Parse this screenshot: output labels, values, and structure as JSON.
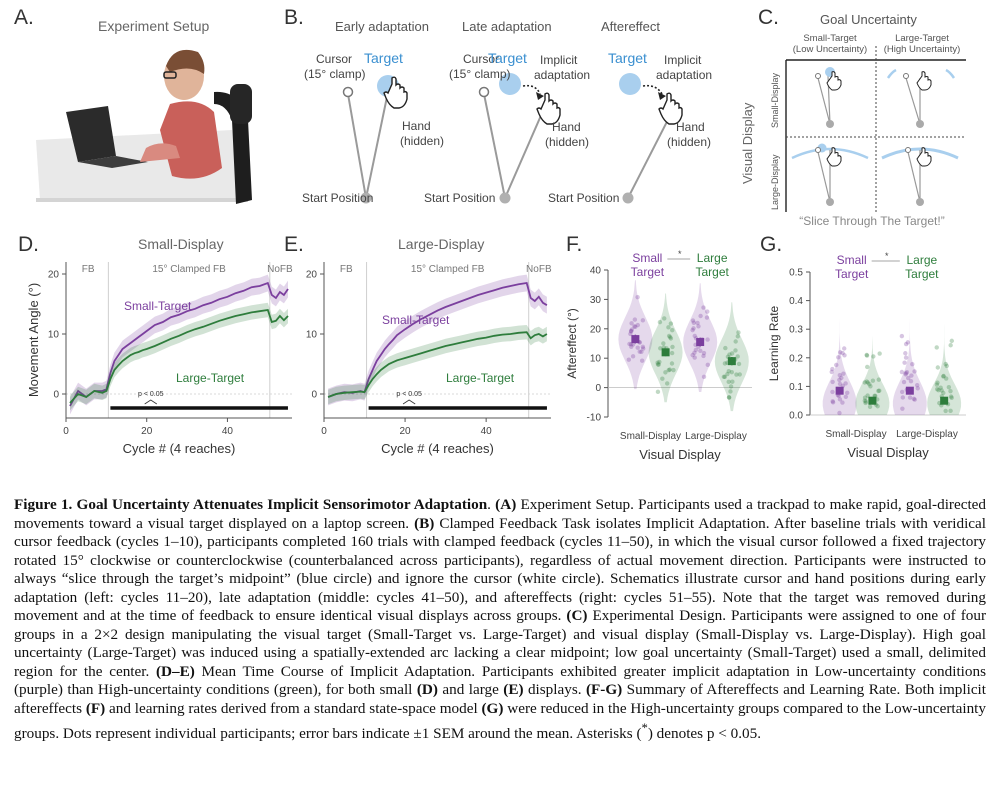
{
  "panels": {
    "a": {
      "letter": "A.",
      "title": "Experiment Setup"
    },
    "b": {
      "letter": "B.",
      "phases": [
        "Early adaptation",
        "Late adaptation",
        "Aftereffect"
      ],
      "cursor": "Cursor",
      "clamp": "(15° clamp)",
      "target": "Target",
      "hand": "Hand",
      "hidden": "(hidden)",
      "implicit": "Implicit",
      "adaptation": "adaptation",
      "start": "Start Position"
    },
    "c": {
      "letter": "C.",
      "title": "Goal Uncertainty",
      "col1a": "Small-Target",
      "col1b": "(Low Uncertainty)",
      "col2a": "Large-Target",
      "col2b": "(High Uncertainty)",
      "ylabel": "Visual Display",
      "row1": "Small-Display",
      "row2": "Large-Display",
      "instruction": "“Slice Through The Target!”"
    },
    "d": {
      "letter": "D.",
      "title": "Small-Display"
    },
    "e": {
      "letter": "E.",
      "title": "Large-Display"
    },
    "f": {
      "letter": "F."
    },
    "g": {
      "letter": "G."
    }
  },
  "timecourse": {
    "phase_labels": {
      "fb": "FB",
      "clamped": "15° Clamped FB",
      "nofb": "NoFB"
    },
    "ylabel": "Movement Angle (°)",
    "xlabel": "Cycle # (4 reaches)",
    "pval": "p < 0.05",
    "small_target": "Small-Target",
    "large_target": "Large-Target"
  },
  "violin": {
    "small_target": [
      "Small",
      "Target"
    ],
    "large_target": [
      "Large",
      "Target"
    ],
    "asterisk": "*",
    "xlabel": "Visual Display",
    "f_ylabel": "Aftereffect (°)",
    "g_ylabel": "Learning Rate"
  },
  "colors": {
    "purple": "#7b3f9e",
    "green": "#2e7d3c",
    "target_blue": "#a9cfee",
    "label_blue": "#3a8fd0"
  },
  "chart_data": [
    {
      "type": "line",
      "panel": "D",
      "title": "Small-Display",
      "xlabel": "Cycle # (4 reaches)",
      "ylabel": "Movement Angle (°)",
      "xlim": [
        0,
        56
      ],
      "ylim": [
        -4,
        22
      ],
      "xticks": [
        0,
        20,
        40
      ],
      "yticks": [
        0,
        10,
        20
      ],
      "phase_boundaries": [
        10.5,
        50.5
      ],
      "x": [
        1,
        3,
        5,
        7,
        9,
        10,
        11,
        12,
        13,
        14,
        15,
        16,
        17,
        18,
        19,
        20,
        22,
        24,
        26,
        28,
        30,
        32,
        34,
        36,
        38,
        40,
        42,
        44,
        46,
        48,
        50,
        51,
        52,
        53,
        54,
        55
      ],
      "series": [
        {
          "name": "Small-Target",
          "values": [
            -2,
            0.5,
            -0.5,
            0.5,
            0.5,
            0.8,
            3.5,
            5.5,
            6.5,
            7.5,
            8,
            8.5,
            9,
            9.5,
            10,
            10.5,
            11.5,
            12,
            12.8,
            13.2,
            13.8,
            14.2,
            14.8,
            15.2,
            15.8,
            16.2,
            16.8,
            17.2,
            17.8,
            18,
            18.5,
            16.5,
            16,
            17,
            16.5,
            17.5
          ]
        },
        {
          "name": "Large-Target",
          "values": [
            -1.5,
            0,
            -0.5,
            0.5,
            0.2,
            0.5,
            2.5,
            4,
            4.8,
            5.5,
            6,
            6.5,
            6.8,
            7,
            7.3,
            7.5,
            8,
            8.6,
            9.2,
            9.7,
            10.3,
            10.8,
            11.2,
            11.7,
            12.2,
            12.6,
            13,
            13.3,
            13.6,
            13.8,
            14,
            12,
            12.2,
            13,
            12.3,
            13
          ]
        }
      ],
      "sig_range": [
        11,
        55
      ],
      "annotation": "p < 0.05"
    },
    {
      "type": "line",
      "panel": "E",
      "title": "Large-Display",
      "xlabel": "Cycle # (4 reaches)",
      "ylabel": "",
      "xlim": [
        0,
        56
      ],
      "ylim": [
        -4,
        22
      ],
      "xticks": [
        0,
        20,
        40
      ],
      "yticks": [
        0,
        10,
        20
      ],
      "phase_boundaries": [
        10.5,
        50.5
      ],
      "x": [
        1,
        3,
        5,
        7,
        9,
        10,
        11,
        12,
        13,
        14,
        15,
        16,
        17,
        18,
        19,
        20,
        22,
        24,
        26,
        28,
        30,
        32,
        34,
        36,
        38,
        40,
        42,
        44,
        46,
        48,
        50,
        51,
        52,
        53,
        54,
        55
      ],
      "series": [
        {
          "name": "Small-Target",
          "values": [
            -0.5,
            0,
            0.3,
            0.2,
            0.5,
            0.3,
            2.5,
            4,
            5.5,
            6.5,
            7.5,
            8.3,
            9,
            9.8,
            10.3,
            10.8,
            11.7,
            12.5,
            13.2,
            13.9,
            14.5,
            15,
            15.5,
            16,
            16.5,
            16.9,
            17.3,
            17.7,
            18,
            18.3,
            18.5,
            16,
            15.5,
            16.2,
            15.2,
            14.8
          ]
        },
        {
          "name": "Large-Target",
          "values": [
            -0.5,
            0,
            0.2,
            0.3,
            0.4,
            0.3,
            1.5,
            2.5,
            3.3,
            4,
            4.5,
            5,
            5.3,
            5.6,
            5.8,
            6,
            6.4,
            6.8,
            7.2,
            7.6,
            8,
            8.3,
            8.6,
            8.9,
            9.2,
            9.4,
            9.7,
            9.9,
            10,
            10.2,
            10.3,
            9.3,
            9.8,
            10,
            9.6,
            10
          ]
        }
      ],
      "sig_range": [
        11,
        55
      ],
      "annotation": "p < 0.05"
    },
    {
      "type": "violin",
      "panel": "F",
      "ylabel": "Aftereffect (°)",
      "xlabel": "Visual Display",
      "categories": [
        "Small-Display",
        "Large-Display"
      ],
      "ylim": [
        -10,
        40
      ],
      "yticks": [
        -10,
        0,
        10,
        20,
        30,
        40
      ],
      "series": [
        {
          "name": "Small Target",
          "means": [
            16.5,
            15.5
          ],
          "sem": [
            1.5,
            1.5
          ]
        },
        {
          "name": "Large Target",
          "means": [
            12,
            9
          ],
          "sem": [
            1.3,
            1.4
          ]
        }
      ],
      "annotation": "*"
    },
    {
      "type": "violin",
      "panel": "G",
      "ylabel": "Learning Rate",
      "xlabel": "Visual Display",
      "categories": [
        "Small-Display",
        "Large-Display"
      ],
      "ylim": [
        0,
        0.5
      ],
      "yticks": [
        0.0,
        0.1,
        0.2,
        0.3,
        0.4,
        0.5
      ],
      "series": [
        {
          "name": "Small Target",
          "means": [
            0.085,
            0.085
          ],
          "sem": [
            0.01,
            0.01
          ]
        },
        {
          "name": "Large Target",
          "means": [
            0.05,
            0.05
          ],
          "sem": [
            0.008,
            0.008
          ]
        }
      ],
      "annotation": "*"
    }
  ],
  "caption": {
    "fig_label": "Figure 1. Goal Uncertainty Attenuates Implicit Sensorimotor Adaptation",
    "p_a_1": ". ",
    "p_a_b": "(A)",
    "p_a_2": " Experiment Setup. Participants used a trackpad to make rapid, goal-directed movements toward a visual target displayed on a laptop screen. ",
    "p_b_b": "(B)",
    "p_b_1": " Clamped Feedback Task isolates Implicit Adaptation. After baseline trials with veridical cursor feedback (cycles 1–10), participants completed 160 trials with clamped feedback (cycles 11–50), in which the visual cursor followed a fixed trajectory rotated 15° clockwise or counterclockwise (counterbalanced across participants), regardless of actual movement direction. Participants were instructed to always “slice through the target’s midpoint” (blue circle) and ignore the cursor (white circle). Schematics illustrate cursor and hand positions during early adaptation (left: cycles 11–20), late adaptation (middle: cycles 41–50), and aftereffects (right: cycles 51–55). Note that the target was removed during movement and at the time of feedback to ensure identical visual displays across groups. ",
    "p_c_b": "(C)",
    "p_c_1": " Experimental Design. Participants were assigned to one of four groups in a 2×2 design manipulating the visual target (Small-Target vs. Large-Target) and visual display (Small-Display vs. Large-Display). High goal uncertainty (Large-Target) was induced using a spatially-extended arc lacking a clear midpoint; low goal uncertainty (Small-Target) used a small, delimited region for the center. ",
    "p_de_b": "(D–E)",
    "p_de_1": " Mean Time Course of Implicit Adaptation. Participants exhibited greater implicit adaptation in Low-uncertainty conditions (purple) than High-uncertainty conditions (green), for both small ",
    "p_d_b": "(D)",
    "p_de_2": " and large ",
    "p_e_b": "(E)",
    "p_de_3": " displays. ",
    "p_fg_b": "(F-G)",
    "p_fg_1": " Summary of Aftereffects and Learning Rate. Both implicit aftereffects ",
    "p_f_b": "(F)",
    "p_fg_2": " and learning rates derived from a standard state-space model ",
    "p_g_b": "(G)",
    "p_fg_3": " were reduced in the High-uncertainty groups compared to the Low-uncertainty groups. Dots represent individual participants; error bars indicate ±1 SEM around the mean. Asterisks (",
    "p_ast": "*",
    "p_fg_4": ") denotes p < 0.05."
  }
}
